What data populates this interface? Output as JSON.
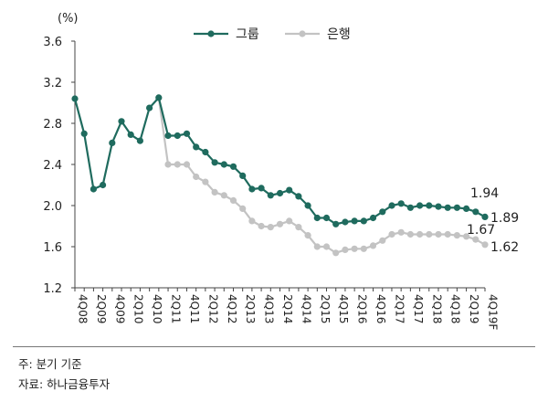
{
  "chart_data": {
    "type": "line",
    "unit_label": "(%)",
    "y_ticks": [
      "1.2",
      "1.6",
      "2.0",
      "2.4",
      "2.8",
      "3.2",
      "3.6"
    ],
    "ylim": [
      1.2,
      3.6
    ],
    "x_tick_labels": [
      "4Q08",
      "2Q09",
      "4Q09",
      "2Q10",
      "4Q10",
      "2Q11",
      "4Q11",
      "2Q12",
      "4Q12",
      "2Q13",
      "4Q13",
      "2Q14",
      "4Q14",
      "2Q15",
      "4Q15",
      "2Q16",
      "4Q16",
      "2Q17",
      "4Q17",
      "2Q18",
      "4Q18",
      "2Q19",
      "4Q19F"
    ],
    "x_count": 45,
    "series": [
      {
        "name": "그룹",
        "color": "#1f6b5e",
        "start_index": 0,
        "values": [
          3.04,
          2.7,
          2.16,
          2.2,
          2.61,
          2.82,
          2.69,
          2.63,
          2.95,
          3.05,
          2.68,
          2.68,
          2.7,
          2.57,
          2.52,
          2.42,
          2.4,
          2.38,
          2.29,
          2.16,
          2.17,
          2.1,
          2.12,
          2.15,
          2.09,
          2.0,
          1.88,
          1.88,
          1.82,
          1.84,
          1.85,
          1.85,
          1.88,
          1.94,
          2.0,
          2.02,
          1.98,
          2.0,
          2.0,
          1.99,
          1.98,
          1.98,
          1.97,
          1.94,
          1.89
        ]
      },
      {
        "name": "은행",
        "color": "#c3c3c3",
        "start_index": 9,
        "values": [
          3.05,
          2.4,
          2.4,
          2.4,
          2.28,
          2.23,
          2.13,
          2.1,
          2.05,
          1.97,
          1.85,
          1.8,
          1.79,
          1.82,
          1.85,
          1.79,
          1.71,
          1.6,
          1.6,
          1.54,
          1.57,
          1.58,
          1.58,
          1.61,
          1.66,
          1.72,
          1.74,
          1.72,
          1.72,
          1.72,
          1.72,
          1.72,
          1.71,
          1.7,
          1.67,
          1.62
        ]
      }
    ],
    "end_labels": [
      {
        "series": "그룹",
        "text": "1.94"
      },
      {
        "series": "그룹",
        "text": "1.89"
      },
      {
        "series": "은행",
        "text": "1.67"
      },
      {
        "series": "은행",
        "text": "1.62"
      }
    ]
  },
  "notes": {
    "note1": "주: 분기 기준",
    "note2": "자료: 하나금융투자"
  }
}
